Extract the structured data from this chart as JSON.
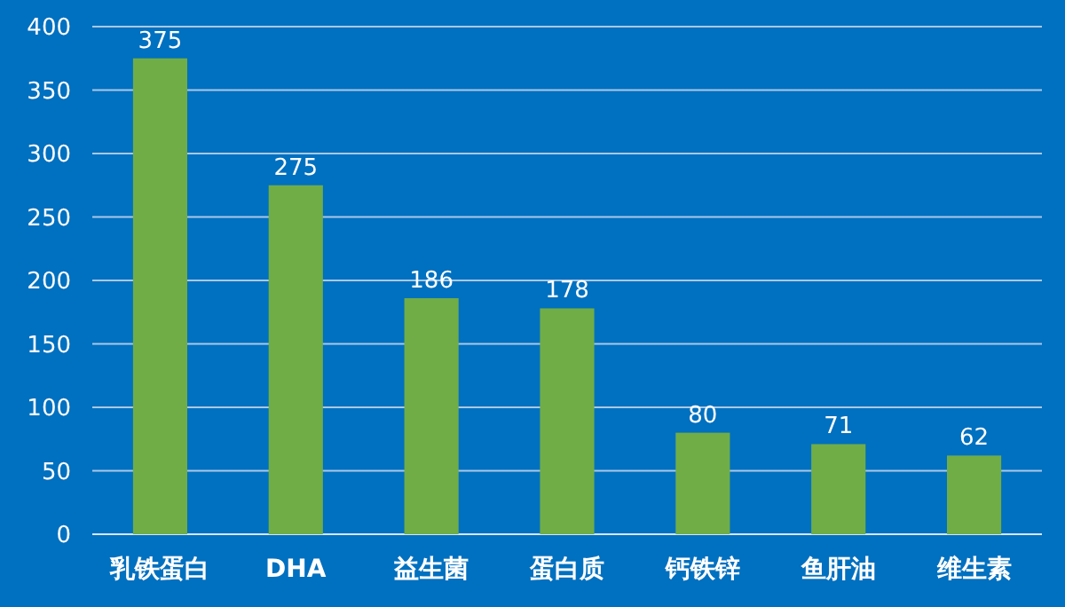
{
  "chart_data": {
    "type": "bar",
    "categories": [
      "乳铁蛋白",
      "DHA",
      "益生菌",
      "蛋白质",
      "钙铁锌",
      "鱼肝油",
      "维生素"
    ],
    "values": [
      375,
      275,
      186,
      178,
      80,
      71,
      62
    ],
    "color": "#70ad47",
    "ylim": [
      0,
      400
    ],
    "yticks": [
      0,
      50,
      100,
      150,
      200,
      250,
      300,
      350,
      400
    ],
    "grid": "y",
    "data_labels": true
  }
}
